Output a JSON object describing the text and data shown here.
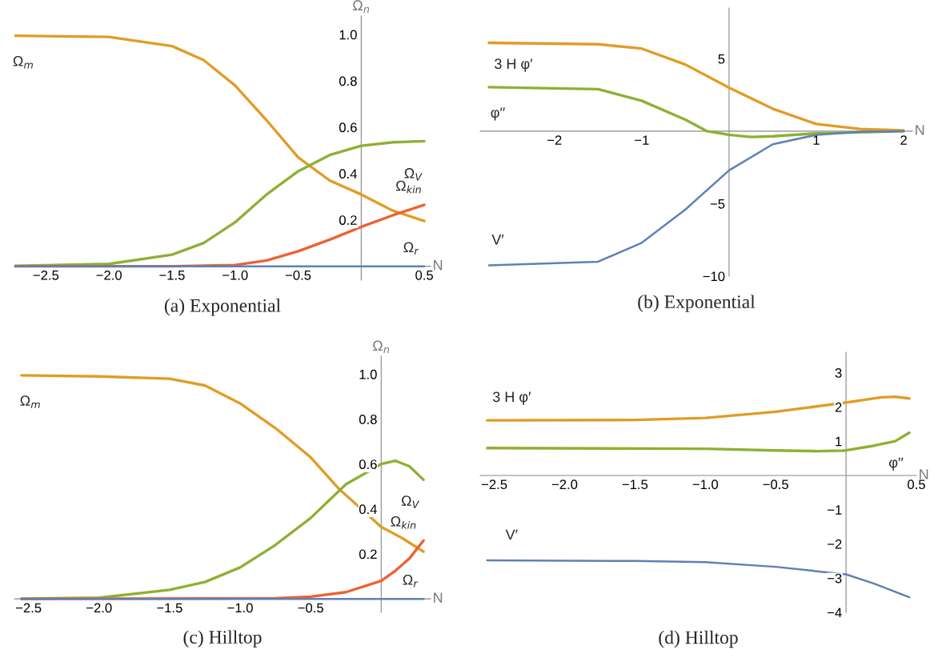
{
  "chart_data": [
    {
      "type": "line",
      "xlabel": "N",
      "ylabel": "Ω$_{n}$",
      "xlim": [
        -2.75,
        0.55
      ],
      "ylim": [
        -0.06,
        1.08
      ],
      "xticks": [
        {
          "value": -2.5,
          "label": "−2.5"
        },
        {
          "value": -2.0,
          "label": "−2.0"
        },
        {
          "value": -1.5,
          "label": "−1.5"
        },
        {
          "value": -1.0,
          "label": "−1.0"
        },
        {
          "value": -0.5,
          "label": "−0.5"
        },
        0.5
      ],
      "yticks": [
        0.2,
        0.4,
        0.6,
        0.8,
        {
          "value": 1.0,
          "label": "1.0"
        }
      ],
      "grid": false,
      "legend": false,
      "series": [
        {
          "name": "Ω$_{r}$",
          "color": "#5e81b5",
          "x": [
            -2.75,
            -2.0,
            -1.0,
            0.0,
            0.5
          ],
          "values": [
            0,
            0,
            0,
            0,
            0
          ]
        },
        {
          "name": "Ω$_{m}$",
          "color": "#e19c24",
          "x": [
            -2.75,
            -2.0,
            -1.5,
            -1.25,
            -1.0,
            -0.75,
            -0.5,
            -0.25,
            0.0,
            0.25,
            0.5
          ],
          "values": [
            0.995,
            0.99,
            0.95,
            0.89,
            0.78,
            0.63,
            0.47,
            0.37,
            0.31,
            0.24,
            0.195
          ]
        },
        {
          "name": "Ω$_{V}$",
          "color": "#8fb032",
          "x": [
            -2.75,
            -2.0,
            -1.5,
            -1.25,
            -1.0,
            -0.75,
            -0.5,
            -0.25,
            0.0,
            0.25,
            0.5
          ],
          "values": [
            0.002,
            0.01,
            0.05,
            0.1,
            0.19,
            0.31,
            0.41,
            0.48,
            0.52,
            0.535,
            0.54
          ]
        },
        {
          "name": "Ω$_{kin}$",
          "color": "#eb6235",
          "x": [
            -2.75,
            -1.5,
            -1.0,
            -0.75,
            -0.5,
            -0.25,
            0.0,
            0.25,
            0.5
          ],
          "values": [
            0,
            0,
            0.005,
            0.025,
            0.065,
            0.115,
            0.17,
            0.22,
            0.265
          ]
        }
      ],
      "annotations": [
        "(a) Exponential"
      ]
    },
    {
      "type": "line",
      "xlabel": "N",
      "xlim": [
        -2.85,
        2.1
      ],
      "ylim": [
        -10,
        8.5
      ],
      "xticks": [
        {
          "value": -2,
          "label": "−2"
        },
        {
          "value": -1,
          "label": "−1"
        },
        1,
        2
      ],
      "yticks": [
        5,
        {
          "value": -5,
          "label": "−5"
        },
        {
          "value": -10,
          "label": "−10"
        }
      ],
      "grid": false,
      "legend": false,
      "series": [
        {
          "name": "V′",
          "color": "#5e81b5",
          "x": [
            -2.75,
            -1.5,
            -1.0,
            -0.5,
            0.0,
            0.5,
            1.0,
            1.5,
            2.0
          ],
          "values": [
            -9.25,
            -9.0,
            -7.7,
            -5.4,
            -2.7,
            -0.9,
            -0.25,
            -0.05,
            0
          ]
        },
        {
          "name": "3 H φ′",
          "color": "#e19c24",
          "x": [
            -2.75,
            -1.5,
            -1.0,
            -0.5,
            0.0,
            0.5,
            1.0,
            1.5,
            2.0
          ],
          "values": [
            6.1,
            6.0,
            5.7,
            4.6,
            3.0,
            1.55,
            0.5,
            0.15,
            0.05
          ]
        },
        {
          "name": "φ′′",
          "color": "#8fb032",
          "x": [
            -2.75,
            -1.5,
            -1.0,
            -0.5,
            -0.25,
            0.0,
            0.25,
            0.5,
            1.0,
            2.0
          ],
          "values": [
            3.04,
            2.9,
            2.1,
            0.8,
            0,
            -0.25,
            -0.4,
            -0.35,
            -0.15,
            0
          ]
        }
      ],
      "annotations": [
        "(b) Exponential"
      ]
    },
    {
      "type": "line",
      "xlabel": "N",
      "ylabel": "Ω$_{n}$",
      "xlim": [
        -2.6,
        0.35
      ],
      "ylim": [
        -0.06,
        1.08
      ],
      "xticks": [
        {
          "value": -2.5,
          "label": "−2.5"
        },
        {
          "value": -2.0,
          "label": "−2.0"
        },
        {
          "value": -1.5,
          "label": "−1.5"
        },
        {
          "value": -1.0,
          "label": "−1.0"
        },
        {
          "value": -0.5,
          "label": "−0.5"
        }
      ],
      "yticks": [
        0.2,
        0.4,
        0.6,
        0.8,
        {
          "value": 1.0,
          "label": "1.0"
        }
      ],
      "grid": false,
      "legend": false,
      "series": [
        {
          "name": "Ω$_{r}$",
          "color": "#5e81b5",
          "x": [
            -2.55,
            -1.0,
            0.0,
            0.3
          ],
          "values": [
            0,
            0,
            0,
            0
          ]
        },
        {
          "name": "Ω$_{m}$",
          "color": "#e19c24",
          "x": [
            -2.55,
            -2.0,
            -1.5,
            -1.25,
            -1.0,
            -0.75,
            -0.5,
            -0.3,
            0.0,
            0.15,
            0.3
          ],
          "values": [
            0.995,
            0.99,
            0.98,
            0.95,
            0.87,
            0.76,
            0.63,
            0.49,
            0.32,
            0.27,
            0.21
          ]
        },
        {
          "name": "Ω$_{V}$",
          "color": "#8fb032",
          "x": [
            -2.55,
            -2.0,
            -1.5,
            -1.25,
            -1.0,
            -0.75,
            -0.5,
            -0.25,
            0.0,
            0.1,
            0.2,
            0.3
          ],
          "values": [
            0.001,
            0.005,
            0.04,
            0.075,
            0.14,
            0.24,
            0.36,
            0.51,
            0.6,
            0.615,
            0.59,
            0.53
          ]
        },
        {
          "name": "Ω$_{kin}$",
          "color": "#eb6235",
          "x": [
            -2.55,
            -0.75,
            -0.5,
            -0.25,
            0.0,
            0.1,
            0.2,
            0.3
          ],
          "values": [
            0,
            0.003,
            0.01,
            0.03,
            0.08,
            0.125,
            0.18,
            0.26
          ]
        }
      ],
      "annotations": [
        "(c) Hilltop"
      ]
    },
    {
      "type": "line",
      "xlabel": "N",
      "xlim": [
        -2.6,
        0.5
      ],
      "ylim": [
        -4,
        3.6
      ],
      "xticks": [
        {
          "value": -2.5,
          "label": "−2.5"
        },
        {
          "value": -2.0,
          "label": "−2.0"
        },
        {
          "value": -1.5,
          "label": "−1.5"
        },
        {
          "value": -1.0,
          "label": "−1.0"
        },
        {
          "value": -0.5,
          "label": "−0.5"
        },
        0.5
      ],
      "yticks": [
        3,
        2,
        1,
        {
          "value": -1,
          "label": "−1"
        },
        {
          "value": -2,
          "label": "−2"
        },
        {
          "value": -3,
          "label": "−3"
        },
        {
          "value": -4,
          "label": "−4"
        }
      ],
      "grid": false,
      "legend": false,
      "series": [
        {
          "name": "V′",
          "color": "#5e81b5",
          "x": [
            -2.55,
            -1.5,
            -1.0,
            -0.5,
            0.0,
            0.2,
            0.45
          ],
          "values": [
            -2.48,
            -2.5,
            -2.53,
            -2.67,
            -2.89,
            -3.16,
            -3.56
          ]
        },
        {
          "name": "3 H φ′",
          "color": "#e19c24",
          "x": [
            -2.55,
            -1.5,
            -1.0,
            -0.5,
            0.0,
            0.25,
            0.35,
            0.45
          ],
          "values": [
            1.61,
            1.62,
            1.68,
            1.86,
            2.13,
            2.28,
            2.3,
            2.25
          ]
        },
        {
          "name": "φ′′",
          "color": "#8fb032",
          "x": [
            -2.55,
            -1.0,
            -0.5,
            -0.2,
            0.0,
            0.2,
            0.35,
            0.45
          ],
          "values": [
            0.8,
            0.78,
            0.73,
            0.71,
            0.73,
            0.87,
            1.0,
            1.25
          ]
        }
      ],
      "annotations": [
        "(d) Hilltop"
      ]
    }
  ]
}
